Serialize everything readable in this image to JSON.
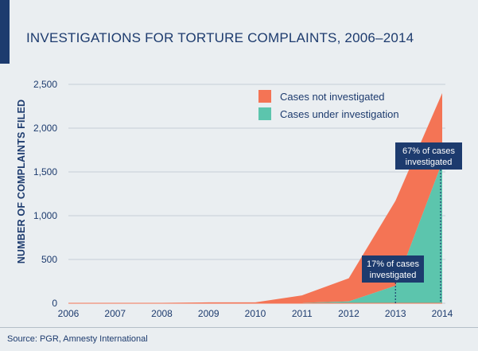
{
  "title": "INVESTIGATIONS FOR TORTURE COMPLAINTS, 2006–2014",
  "source": "Source: PGR, Amnesty International",
  "colors": {
    "not_investigated": "#f47455",
    "under_investigation": "#5cc5ad",
    "text": "#1d3b6e",
    "callout_bg": "#1d3b6e",
    "background": "#eaeef1"
  },
  "chart_data": {
    "type": "area",
    "stacked": true,
    "x": [
      2006,
      2007,
      2008,
      2009,
      2010,
      2011,
      2012,
      2013,
      2014
    ],
    "series": [
      {
        "name": "Cases under investigation",
        "values": [
          0,
          0,
          0,
          0,
          0,
          5,
          20,
          200,
          1610
        ]
      },
      {
        "name": "Cases not investigated",
        "values": [
          5,
          0,
          5,
          10,
          10,
          85,
          265,
          970,
          790
        ]
      }
    ],
    "xlabel": "",
    "ylabel": "NUMBER OF COMPLAINTS FILED",
    "ylim": [
      0,
      2500
    ],
    "yticks": [
      "0",
      "500",
      "1,000",
      "1,500",
      "2,000",
      "2,500"
    ],
    "xticks": [
      "2006",
      "2007",
      "2008",
      "2009",
      "2010",
      "2011",
      "2012",
      "2013",
      "2014"
    ],
    "grid": "horizontal",
    "legend": [
      {
        "label": "Cases not investigated",
        "series": "not_investigated"
      },
      {
        "label": "Cases under investigation",
        "series": "under_investigation"
      }
    ],
    "legend_position": "top-right",
    "annotations": [
      {
        "year": 2013,
        "line1": "17% of cases",
        "line2": "investigated"
      },
      {
        "year": 2014,
        "line1": "67% of cases",
        "line2": "investigated"
      }
    ]
  }
}
